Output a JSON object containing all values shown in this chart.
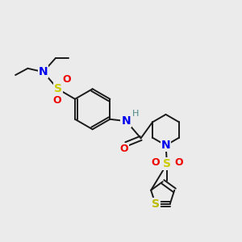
{
  "background_color": "#ebebeb",
  "bond_color": "#1a1a1a",
  "atom_colors": {
    "N": "#0000ee",
    "O": "#ee0000",
    "S": "#cccc00",
    "S_thio": "#bbbb00",
    "H": "#4a8888",
    "C": "#1a1a1a"
  },
  "figsize": [
    3.0,
    3.0
  ],
  "dpi": 100
}
